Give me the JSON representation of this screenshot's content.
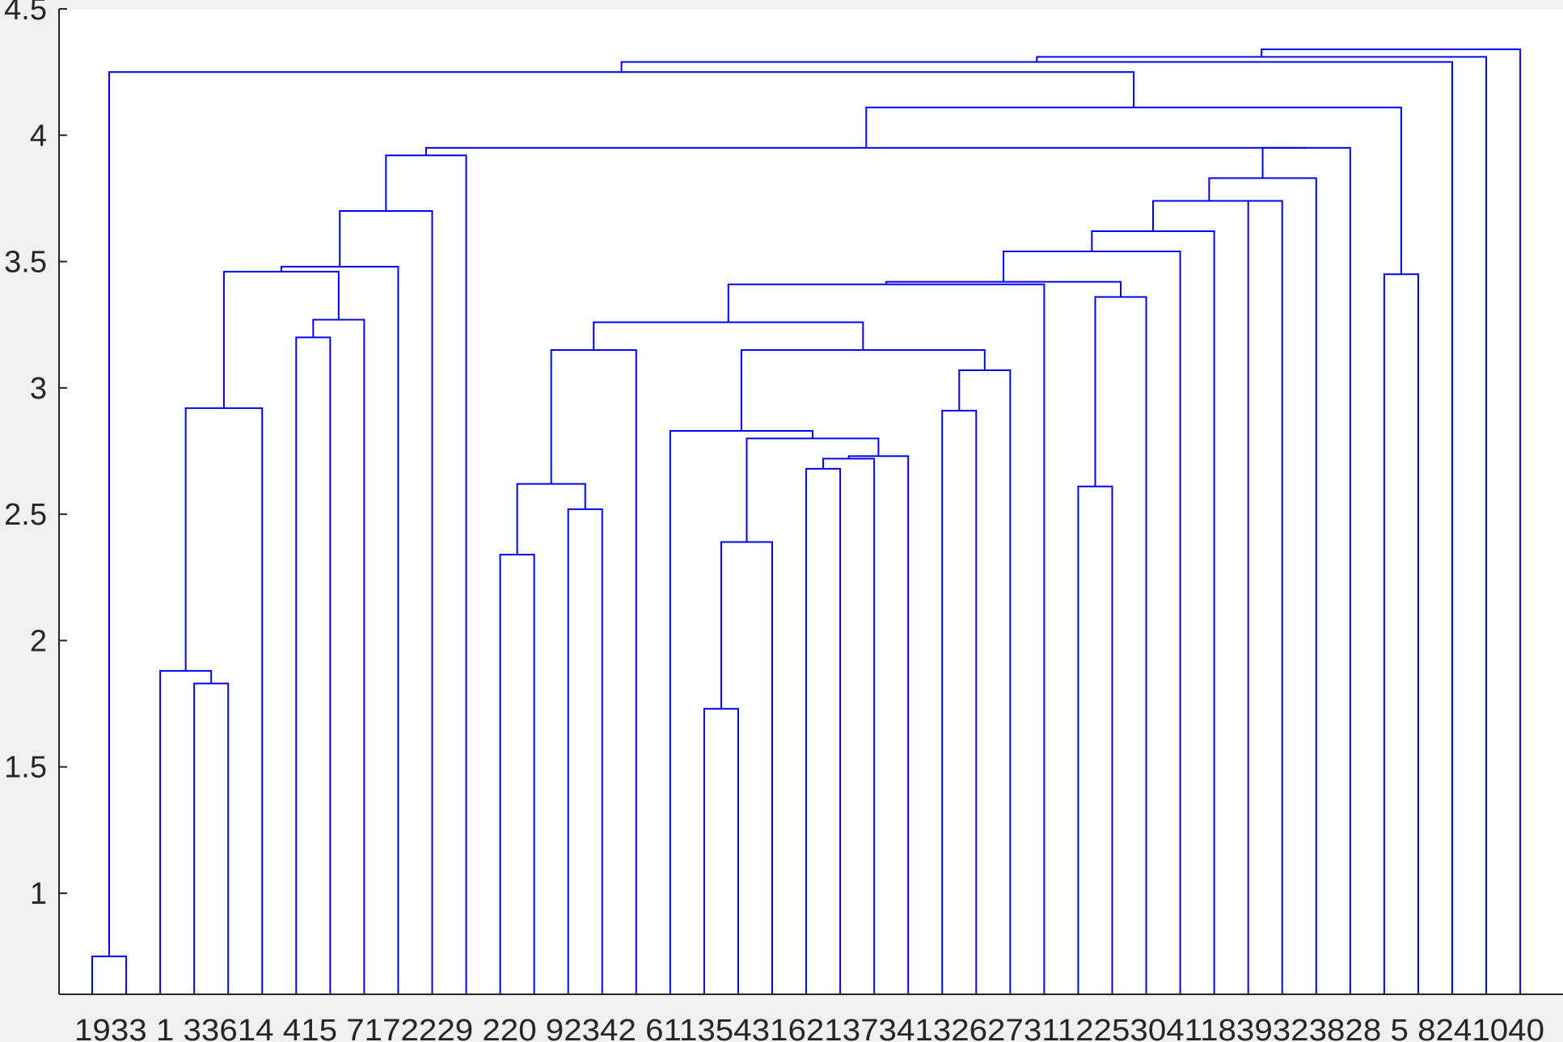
{
  "chart_data": {
    "type": "dendrogram",
    "ylim": [
      0.6,
      4.5
    ],
    "yticks": [
      1,
      1.5,
      2,
      2.5,
      3,
      3.5,
      4,
      4.5
    ],
    "ytick_labels": [
      "1",
      "1.5",
      "2",
      "2.5",
      "3",
      "3.5",
      "4",
      "4.5"
    ],
    "leaf_order": [
      "19",
      "33",
      "1",
      "3",
      "36",
      "14",
      "4",
      "15",
      "7",
      "17",
      "22",
      "29",
      "2",
      "20",
      "9",
      "23",
      "42",
      "6",
      "11",
      "35",
      "43",
      "16",
      "21",
      "37",
      "34",
      "13",
      "26",
      "27",
      "31",
      "12",
      "25",
      "30",
      "41",
      "18",
      "39",
      "32",
      "38",
      "28",
      "5",
      "8",
      "24",
      "10",
      "40"
    ],
    "leaf_labels_text": "1933 1 33614 415 7172229 220 92342 6113543162137341326273112253041183932382​8 5 8241040",
    "merges": [
      {
        "left": 1,
        "right": 2,
        "height": 0.75
      },
      {
        "left": 4,
        "right": 5,
        "height": 1.83
      },
      {
        "left": 3,
        "right": "m1",
        "height": 1.88
      },
      {
        "left": "m2",
        "right": 6,
        "height": 2.92
      },
      {
        "left": 7,
        "right": 8,
        "height": 3.2
      },
      {
        "left": "m4",
        "right": 9,
        "height": 3.27
      },
      {
        "left": "m3",
        "right": "m5",
        "height": 3.46
      },
      {
        "left": "m6",
        "right": 10,
        "height": 3.48
      },
      {
        "left": "m7",
        "right": 11,
        "height": 3.7
      },
      {
        "left": "m8",
        "right": 12,
        "height": 3.92
      },
      {
        "left": 13,
        "right": 14,
        "height": 2.34
      },
      {
        "left": 15,
        "right": 16,
        "height": 2.52
      },
      {
        "left": "m10",
        "right": "m11",
        "height": 2.62
      },
      {
        "left": "m12",
        "right": 17,
        "height": 3.15
      },
      {
        "left": 19,
        "right": 20,
        "height": 1.73
      },
      {
        "left": "m14",
        "right": 21,
        "height": 2.39
      },
      {
        "left": 22,
        "right": 23,
        "height": 2.68
      },
      {
        "left": "m16",
        "right": 24,
        "height": 2.72
      },
      {
        "left": "m17",
        "right": 25,
        "height": 2.73
      },
      {
        "left": "m15",
        "right": "m18",
        "height": 2.8
      },
      {
        "left": 18,
        "right": "m19",
        "height": 2.83
      },
      {
        "left": 26,
        "right": 27,
        "height": 2.91
      },
      {
        "left": "m21",
        "right": 28,
        "height": 3.07
      },
      {
        "left": "m20",
        "right": "m22",
        "height": 3.15
      },
      {
        "left": "m13",
        "right": "m23",
        "height": 3.26
      },
      {
        "left": "m24",
        "right": 29,
        "height": 3.41
      },
      {
        "left": 30,
        "right": 31,
        "height": 2.61
      },
      {
        "left": "m26",
        "right": 32,
        "height": 3.36
      },
      {
        "left": "m25",
        "right": "m27",
        "height": 3.42
      },
      {
        "left": "m28",
        "right": 33,
        "height": 3.54
      },
      {
        "left": "m29",
        "right": 34,
        "height": 3.62
      },
      {
        "left": 35,
        "right": 36,
        "height": 3.74
      },
      {
        "left": "m30",
        "right": "m31",
        "height": 3.74
      },
      {
        "left": "m32",
        "right": 37,
        "height": 3.83
      },
      {
        "left": "m33",
        "right": 38,
        "height": 3.95
      },
      {
        "left": "m9",
        "right": "m34",
        "height": 3.95
      },
      {
        "left": 39,
        "right": 40,
        "height": 3.45
      },
      {
        "left": "m35",
        "right": "m36",
        "height": 4.11
      },
      {
        "left": "m0",
        "right": "m37",
        "height": 4.25
      },
      {
        "left": "m38",
        "right": 41,
        "height": 4.29
      },
      {
        "left": "m39",
        "right": 42,
        "height": 4.31
      },
      {
        "left": "m40",
        "right": 43,
        "height": 4.34
      }
    ],
    "link_color": "#0000ff",
    "grid": false,
    "title": "",
    "xlabel": "",
    "ylabel": ""
  }
}
